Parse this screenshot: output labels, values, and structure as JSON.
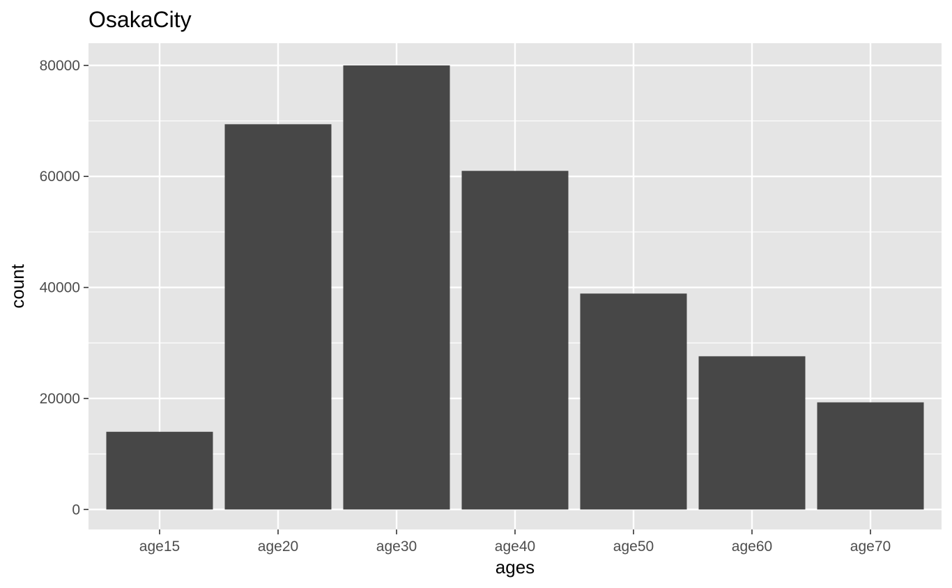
{
  "chart_data": {
    "type": "bar",
    "title": "OsakaCity",
    "xlabel": "ages",
    "ylabel": "count",
    "categories": [
      "age15",
      "age20",
      "age30",
      "age40",
      "age50",
      "age60",
      "age70"
    ],
    "values": [
      14000,
      69400,
      80000,
      61000,
      38900,
      27600,
      19300
    ],
    "yticks": [
      0,
      20000,
      40000,
      60000,
      80000
    ],
    "ytick_labels": [
      "0",
      "20000",
      "40000",
      "60000",
      "80000"
    ],
    "ylim": [
      -3600,
      84000
    ],
    "grid": true,
    "colors": {
      "bar": "#474747",
      "panel": "#e5e5e5",
      "grid": "#ffffff",
      "tick_label": "#4d4d4d",
      "tick_mark": "#333333"
    }
  }
}
